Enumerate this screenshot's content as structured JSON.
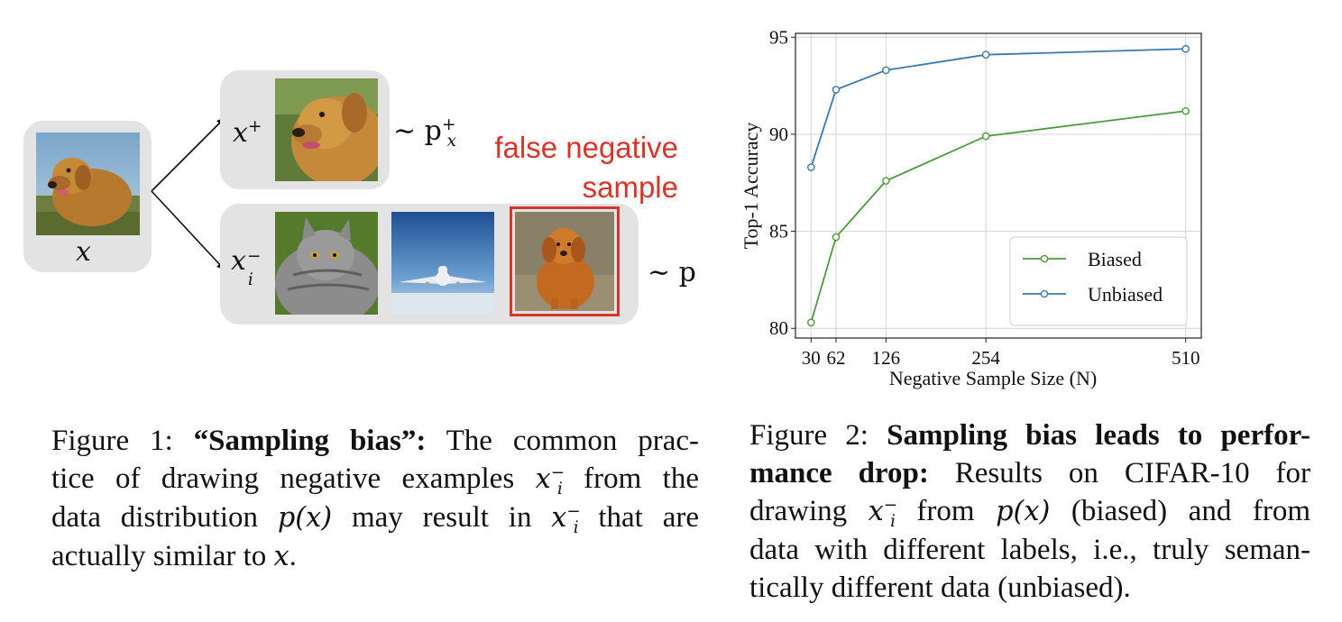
{
  "figure1": {
    "anchor_label": "x",
    "positive_label": "x",
    "positive_sup": "+",
    "positive_dist": "∼ p",
    "positive_dist_sub": "x",
    "positive_dist_sup": "+",
    "negative_label": "x",
    "negative_sub": "i",
    "negative_sup": "−",
    "negative_dist": "∼ p",
    "false_negative_line1": "false negative",
    "false_negative_line2": "sample",
    "images": {
      "anchor": "golden-retriever-photo",
      "positive": "golden-retriever-closeup-photo",
      "negative_1": "tabby-cat-photo",
      "negative_2": "airplane-photo",
      "negative_3": "sitting-dog-photo"
    },
    "colors": {
      "false_negative": "#d6352a",
      "panel": "#e3e3e3"
    },
    "caption": {
      "prefix": "Figure 1: ",
      "bold": "“Sampling bias”:",
      "line1_rest": " The common prac-",
      "line2a": "tice of drawing negative examples ",
      "line2b": " from the",
      "line3a": "data distribution ",
      "line3b": " may result in ",
      "line3c": " that are",
      "line4a": "actually similar to ",
      "line4b": ".",
      "math_x": "x",
      "math_i": "i",
      "math_minus": "−",
      "math_px": "p(x)"
    }
  },
  "chart_data": {
    "type": "line",
    "x": [
      30,
      62,
      126,
      254,
      510
    ],
    "xticks": [
      "30",
      "62",
      "126",
      "254",
      "510"
    ],
    "xlabel": "Negative Sample Size (N)",
    "ylabel": "Top-1 Accuracy",
    "ylim": [
      79.5,
      95.2
    ],
    "yticks": [
      80,
      85,
      90,
      95
    ],
    "xlim": [
      10,
      530
    ],
    "grid": true,
    "legend_position": "bottom-right",
    "series": [
      {
        "name": "Biased",
        "color": "#4e9a3e",
        "values": [
          80.3,
          84.7,
          87.6,
          89.9,
          91.2
        ]
      },
      {
        "name": "Unbiased",
        "color": "#3b78b2",
        "values": [
          88.3,
          92.3,
          93.3,
          94.1,
          94.4
        ]
      }
    ]
  },
  "figure2": {
    "caption": {
      "prefix": "Figure 2: ",
      "bold1": "Sampling bias leads to perfor-",
      "bold2": "mance drop:",
      "line2_rest": "  Results on CIFAR-10 for",
      "line3a": "drawing ",
      "line3b": " from ",
      "line3c": " (biased) and from",
      "line4": "data with different labels, i.e., truly seman-",
      "line5": "tically different data (unbiased).",
      "math_x": "x",
      "math_i": "i",
      "math_minus": "−",
      "math_px": "p(x)"
    }
  }
}
